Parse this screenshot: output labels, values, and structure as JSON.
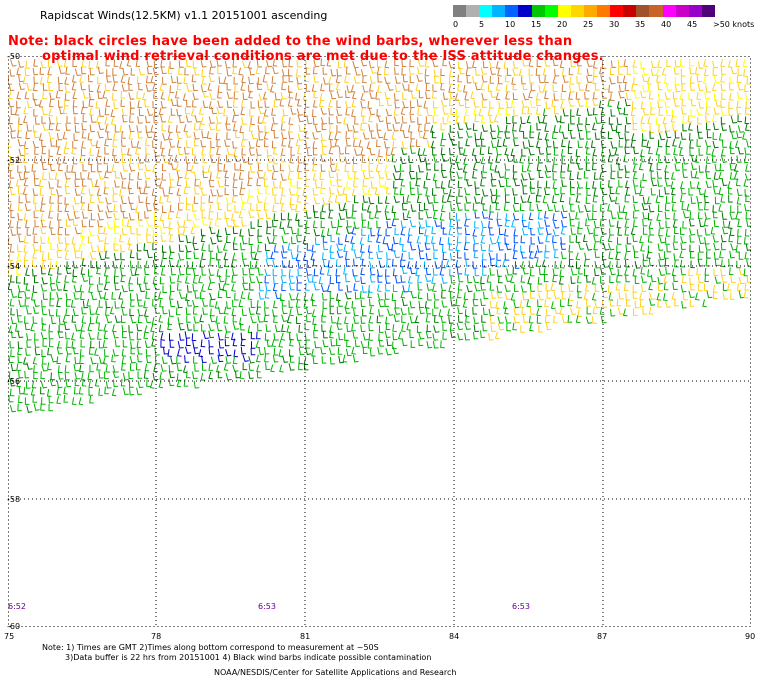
{
  "title": "Rapidscat Winds(12.5KM) v1.1 20151001 ascending",
  "note": {
    "line1": "Note: black circles have been added to the wind barbs, wherever less than",
    "line2": "optimal wind retrieval conditions are met due to the ISS attitude changes."
  },
  "legend": {
    "labels": [
      "0",
      "5",
      "10",
      "15",
      "20",
      "25",
      "30",
      "35",
      "40",
      "45",
      ">50 knots"
    ],
    "colors": [
      "#808080",
      "#b0b0b0",
      "#00ffff",
      "#00b4ff",
      "#0064ff",
      "#0000c8",
      "#00c800",
      "#00ff00",
      "#ffff00",
      "#ffd700",
      "#ffaa00",
      "#ff7800",
      "#ff0000",
      "#c80000",
      "#a0522d",
      "#c86428",
      "#ff00ff",
      "#c800c8",
      "#9600c8",
      "#500078"
    ]
  },
  "map": {
    "lat_labels": [
      "-50",
      "-52",
      "-54",
      "-56",
      "-58",
      "-60"
    ],
    "lon_labels": [
      "75",
      "78",
      "81",
      "84",
      "87",
      "90"
    ],
    "time_labels": [
      "6:52",
      "6:53",
      "6:53"
    ],
    "wind_colors": {
      "orange": "#d2823c",
      "yellow": "#ffd21e",
      "light_yellow": "#ffff00",
      "green": "#00b400",
      "dark_green": "#007800",
      "light_blue": "#00b4ff",
      "blue": "#0050ff",
      "dark_blue": "#0000c8",
      "grid": "#000000"
    }
  },
  "footnotes": {
    "line1": "Note: 1) Times are GMT 2)Times along bottom correspond to measurement at ~50S",
    "line2": "3)Data buffer is 22 hrs from 20151001 4) Black wind barbs indicate possible contamination"
  },
  "credit": "NOAA/NESDIS/Center for Satellite Applications and Research"
}
